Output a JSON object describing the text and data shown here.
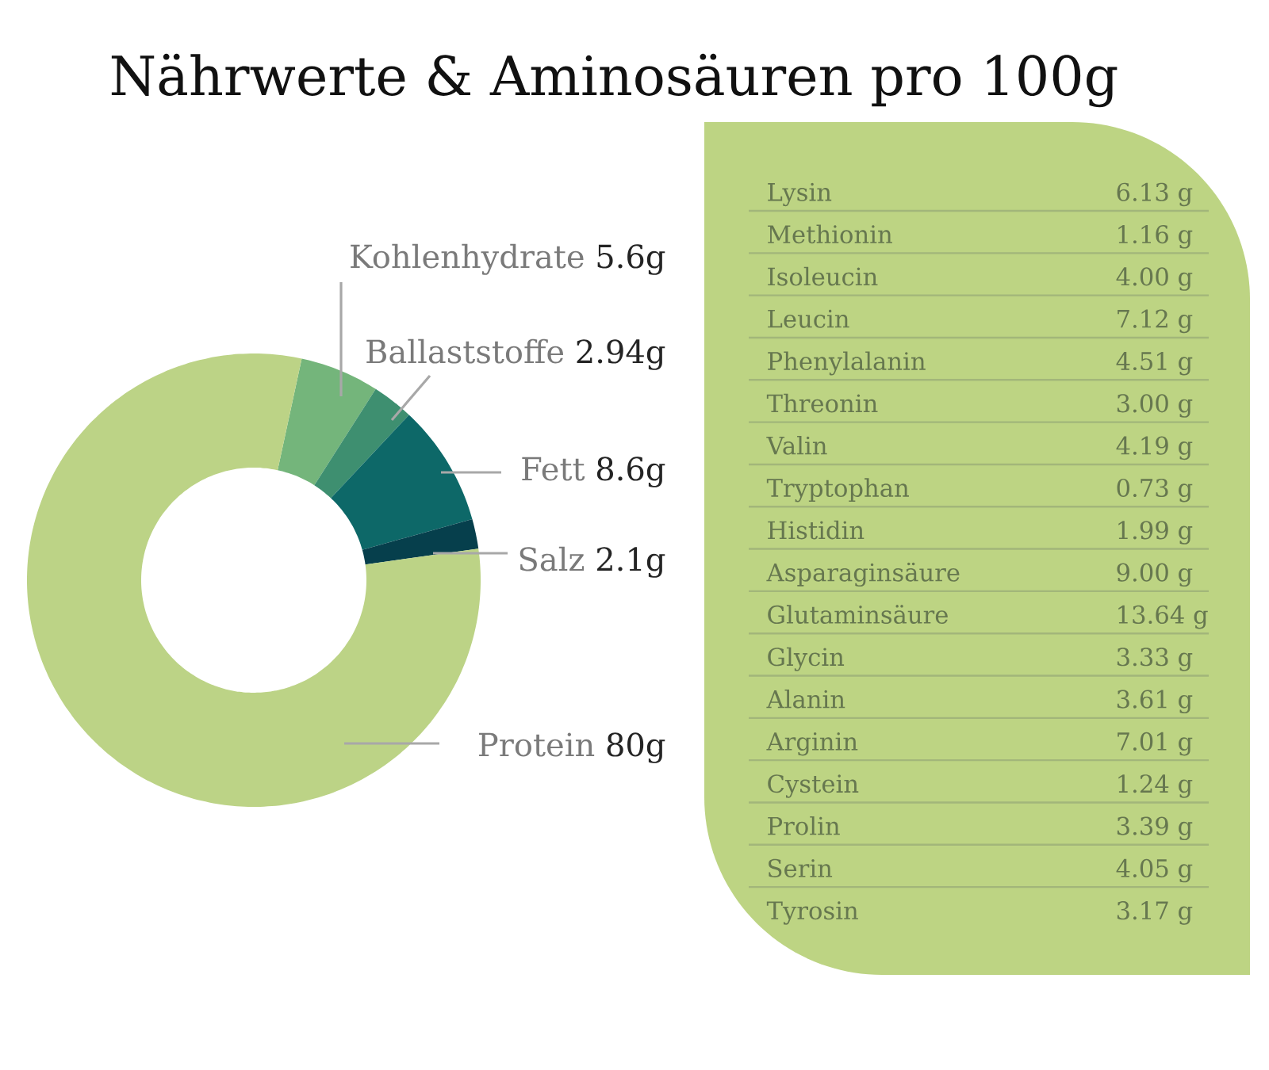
{
  "chart_data": [
    {
      "type": "donut",
      "title": "Nährwerte & Aminosäuren pro 100g",
      "categories": [
        "Kohlenhydrate",
        "Ballaststoffe",
        "Fett",
        "Salz",
        "Protein"
      ],
      "values": [
        5.6,
        2.94,
        8.6,
        2.1,
        80
      ],
      "colors": [
        "#74b57b",
        "#3e8f70",
        "#0d6868",
        "#063f4c",
        "#bcd386"
      ],
      "value_labels": [
        "5.6g",
        "2.94g",
        "8.6g",
        "2.1g",
        "80g"
      ]
    },
    {
      "type": "other",
      "color": "#bdd483",
      "annotations": [
        "Lysin",
        "6.13 g",
        "Methionin",
        "1.16 g",
        "Isoleucin",
        "4.00 g",
        "Leucin",
        "7.12 g",
        "Phenylalanin",
        "4.51 g",
        "Threonin",
        "3.00 g",
        "Valin",
        "4.19 g",
        "Tryptophan",
        "0.73 g",
        "Histidin",
        "1.99 g",
        "Asparaginsäure",
        "9.00 g",
        "Glutaminsäure",
        "13.64 g",
        "Glycin",
        "3.33 g",
        "Alanin",
        "3.61 g",
        "Arginin",
        "7.01 g",
        "Cystein",
        "1.24 g",
        "Prolin",
        "3.39 g",
        "Serin",
        "4.05 g",
        "Tyrosin",
        "3.17 g"
      ]
    }
  ]
}
